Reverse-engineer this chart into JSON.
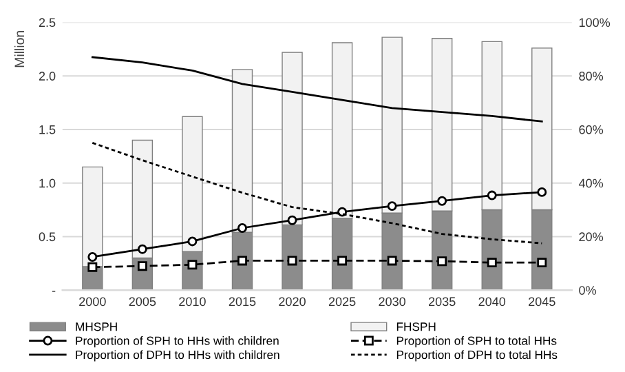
{
  "chart_data": {
    "type": "bar",
    "stacked": true,
    "ylabel": "Million",
    "categories": [
      "2000",
      "2005",
      "2010",
      "2015",
      "2020",
      "2025",
      "2030",
      "2035",
      "2040",
      "2045"
    ],
    "series": [
      {
        "name": "MHSPH",
        "color": "#8c8c8c",
        "values": [
          0.22,
          0.3,
          0.36,
          0.54,
          0.61,
          0.67,
          0.72,
          0.74,
          0.75,
          0.75
        ]
      },
      {
        "name": "FHSPH",
        "color": "#f2f2f2",
        "values": [
          0.93,
          1.1,
          1.26,
          1.52,
          1.61,
          1.64,
          1.64,
          1.61,
          1.57,
          1.51
        ]
      },
      {
        "name": "Proportion of SPH to HHs with children",
        "type": "line",
        "axis": "y2",
        "color": "#000000",
        "marker": "circle",
        "line_style": "solid",
        "values": [
          12.4,
          15.3,
          18.2,
          23.2,
          26.1,
          29.2,
          31.4,
          33.3,
          35.4,
          36.6
        ]
      },
      {
        "name": "Proportion of SPH to total HHs",
        "type": "line",
        "axis": "y2",
        "color": "#000000",
        "marker": "square",
        "line_style": "dashed",
        "values": [
          8.6,
          9.0,
          9.5,
          11,
          11,
          11,
          11,
          10.8,
          10.3,
          10.3
        ]
      },
      {
        "name": "Proportion of DPH to HHs with children",
        "type": "line",
        "axis": "y2",
        "color": "#000000",
        "marker": "none",
        "line_style": "solid",
        "values": [
          87,
          85,
          82,
          77,
          74,
          71,
          68,
          66.5,
          65,
          63
        ]
      },
      {
        "name": "Proportion of DPH to total HHs",
        "type": "line",
        "axis": "y2",
        "color": "#000000",
        "marker": "none",
        "line_style": "dotted",
        "values": [
          55,
          48.5,
          42.4,
          36.4,
          31,
          28.4,
          25,
          21,
          19,
          17.5
        ]
      }
    ],
    "ylim": [
      0,
      2.5
    ],
    "yticks": [
      {
        "value": 0,
        "label": "-"
      },
      0.5,
      {
        "value": 1,
        "label": "1.0"
      },
      1.5,
      {
        "value": 2,
        "label": "2.0"
      },
      2.5
    ],
    "y2lim": [
      0,
      100
    ],
    "y2ticks": [
      {
        "value": 0,
        "label": "0%"
      },
      {
        "value": 20,
        "label": "20%"
      },
      {
        "value": 40,
        "label": "40%"
      },
      {
        "value": 60,
        "label": "60%"
      },
      {
        "value": 80,
        "label": "80%"
      },
      {
        "value": 100,
        "label": "100%"
      }
    ],
    "grid": "y",
    "legend": "bottom"
  }
}
